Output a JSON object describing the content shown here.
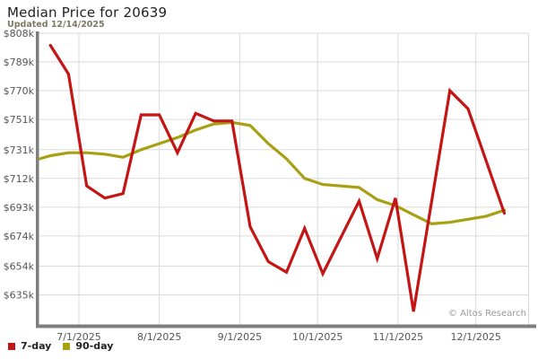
{
  "header": {
    "title": "Median Price for 20639",
    "subtitle": "Updated 12/14/2025"
  },
  "watermark": "© Altos Research",
  "legend": [
    {
      "label": "7-day",
      "color": "#c41414"
    },
    {
      "label": "90-day",
      "color": "#a7a012"
    }
  ],
  "chart_data": {
    "type": "line",
    "title": "Median Price for 20639",
    "subtitle": "Updated 12/14/2025",
    "ylabel": "",
    "xlabel": "",
    "grid": true,
    "legend_position": "bottom-left",
    "ylim_k": [
      615,
      808
    ],
    "colors": {
      "grid": "#dadada",
      "axis": "#7e7e7e",
      "tick_text": "#555555"
    },
    "y_ticks": [
      {
        "label": "$808k",
        "value": 808
      },
      {
        "label": "$789k",
        "value": 789
      },
      {
        "label": "$770k",
        "value": 770
      },
      {
        "label": "$751k",
        "value": 751
      },
      {
        "label": "$731k",
        "value": 731
      },
      {
        "label": "$712k",
        "value": 712
      },
      {
        "label": "$693k",
        "value": 693
      },
      {
        "label": "$674k",
        "value": 674
      },
      {
        "label": "$654k",
        "value": 654
      },
      {
        "label": "$635k",
        "value": 635
      }
    ],
    "x_ticks": [
      {
        "label": "7/1/2025",
        "date": "7/1"
      },
      {
        "label": "8/1/2025",
        "date": "8/1"
      },
      {
        "label": "9/1/2025",
        "date": "9/1"
      },
      {
        "label": "10/1/2025",
        "date": "10/1"
      },
      {
        "label": "11/1/2025",
        "date": "11/1"
      },
      {
        "label": "12/1/2025",
        "date": "12/1"
      }
    ],
    "series": [
      {
        "name": "90-day",
        "color": "#a7a012",
        "points": [
          [
            "6/16",
            725
          ],
          [
            "6/20",
            727
          ],
          [
            "6/27",
            729
          ],
          [
            "7/4",
            729
          ],
          [
            "7/11",
            728
          ],
          [
            "7/18",
            726
          ],
          [
            "7/25",
            731
          ],
          [
            "8/1",
            735
          ],
          [
            "8/8",
            739
          ],
          [
            "8/15",
            744
          ],
          [
            "8/22",
            748
          ],
          [
            "8/29",
            749
          ],
          [
            "9/5",
            747
          ],
          [
            "9/12",
            735
          ],
          [
            "9/19",
            725
          ],
          [
            "9/26",
            712
          ],
          [
            "10/3",
            708
          ],
          [
            "10/10",
            707
          ],
          [
            "10/17",
            706
          ],
          [
            "10/24",
            698
          ],
          [
            "10/31",
            694
          ],
          [
            "11/7",
            688
          ],
          [
            "11/14",
            682
          ],
          [
            "11/21",
            683
          ],
          [
            "11/28",
            685
          ],
          [
            "12/5",
            687
          ],
          [
            "12/12",
            691
          ]
        ]
      },
      {
        "name": "7-day",
        "color": "#c41414",
        "points": [
          [
            "6/20",
            800
          ],
          [
            "6/27",
            781
          ],
          [
            "7/4",
            707
          ],
          [
            "7/11",
            699
          ],
          [
            "7/18",
            702
          ],
          [
            "7/25",
            754
          ],
          [
            "8/1",
            754
          ],
          [
            "8/8",
            729
          ],
          [
            "8/15",
            755
          ],
          [
            "8/22",
            750
          ],
          [
            "8/29",
            750
          ],
          [
            "9/5",
            680
          ],
          [
            "9/12",
            657
          ],
          [
            "9/19",
            650
          ],
          [
            "9/26",
            679
          ],
          [
            "10/3",
            649
          ],
          [
            "10/10",
            673
          ],
          [
            "10/17",
            697
          ],
          [
            "10/24",
            659
          ],
          [
            "10/31",
            699
          ],
          [
            "11/7",
            624
          ],
          [
            "11/21",
            770
          ],
          [
            "11/28",
            758
          ],
          [
            "12/12",
            689
          ]
        ]
      }
    ]
  }
}
